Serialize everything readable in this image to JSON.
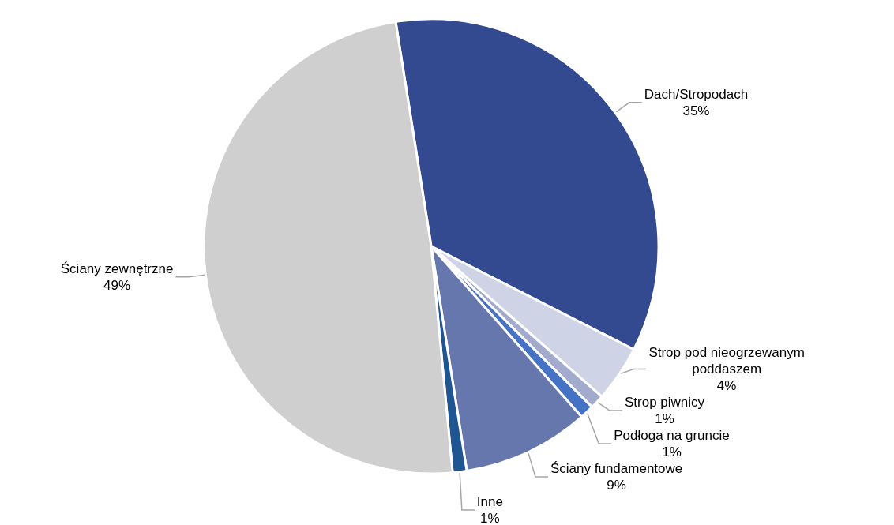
{
  "chart_data": {
    "type": "pie",
    "categories": [
      "Dach/Stropodach",
      "Strop pod nieogrzewanym poddaszem",
      "Strop piwnicy",
      "Podłoga na gruncie",
      "Ściany fundamentowe",
      "Inne",
      "Ściany zewnętrzne"
    ],
    "values": [
      35,
      4,
      1,
      1,
      9,
      1,
      49
    ],
    "colors": [
      "#334a91",
      "#ced3e6",
      "#a2abce",
      "#4472c4",
      "#6677ae",
      "#1f5591",
      "#d0cfd0"
    ],
    "value_labels": [
      "35%",
      "4%",
      "1%",
      "1%",
      "9%",
      "1%",
      "49%"
    ]
  }
}
